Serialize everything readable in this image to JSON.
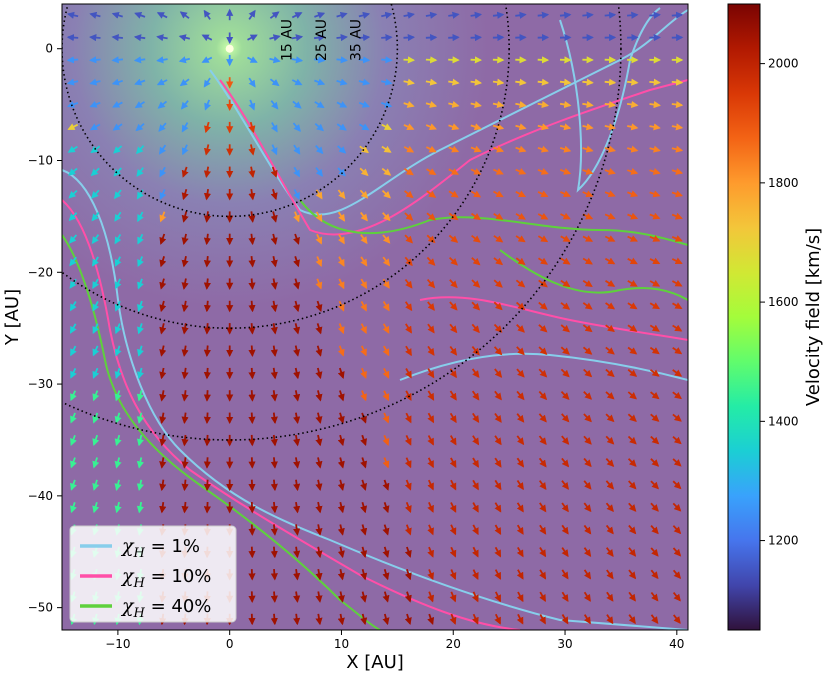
{
  "chart_data": {
    "type": "heatmap",
    "subtype": "velocity vector field with contours",
    "xlabel": "X [AU]",
    "ylabel": "Y [AU]",
    "xlim": [
      -15,
      41
    ],
    "ylim": [
      -52,
      4
    ],
    "xticks": [
      -10,
      0,
      10,
      20,
      30,
      40
    ],
    "yticks": [
      -50,
      -40,
      -30,
      -20,
      -10,
      0
    ],
    "source_position": [
      0,
      0
    ],
    "grid": false,
    "colorbar": {
      "label": "Velocity field [km/s]",
      "range": [
        1050,
        2100
      ],
      "ticks": [
        1200,
        1400,
        1600,
        1800,
        2000
      ],
      "colormap": [
        "#30123b",
        "#4145ab",
        "#4675ed",
        "#39a2fc",
        "#1bcfd4",
        "#24eca6",
        "#61fc6c",
        "#a4fc3b",
        "#d1e834",
        "#f3c63a",
        "#fe9b2d",
        "#f36315",
        "#d93806",
        "#b11901",
        "#7a0402"
      ]
    },
    "rings": [
      {
        "radius": 15,
        "label": "15 AU"
      },
      {
        "radius": 25,
        "label": "25 AU"
      },
      {
        "radius": 35,
        "label": "35 AU"
      }
    ],
    "legend": {
      "position": "lower-left",
      "entries": [
        {
          "label": "χ",
          "sub": "H",
          "value": " = 1%",
          "color": "#87ceeb"
        },
        {
          "label": "χ",
          "sub": "H",
          "value": " = 10%",
          "color": "#ff4fa8"
        },
        {
          "label": "χ",
          "sub": "H",
          "value": " = 40%",
          "color": "#5ed13c"
        }
      ]
    },
    "velocity_field_summary": {
      "near_source_kms": 1150,
      "cone_center_kms": 2050,
      "cone_direction": "downward (-Y)",
      "outer_region_kms": 1900
    }
  }
}
